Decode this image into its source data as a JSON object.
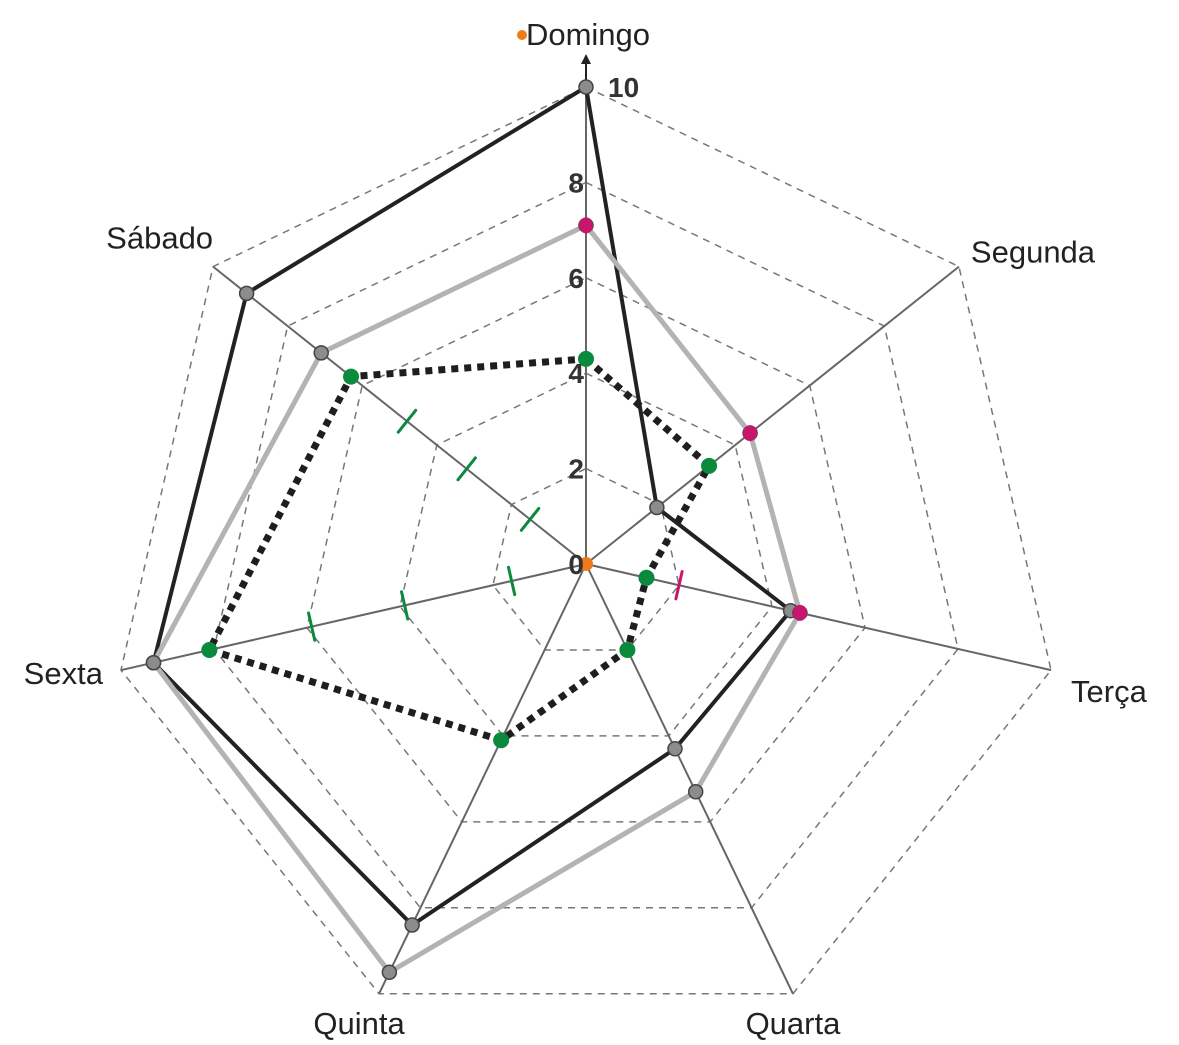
{
  "chart_data": {
    "type": "radar",
    "axes": [
      "Domingo",
      "Segunda",
      "Terça",
      "Quarta",
      "Quinta",
      "Sexta",
      "Sábado"
    ],
    "radial_ticks": [
      "0",
      "2",
      "4",
      "6",
      "8",
      "10"
    ],
    "rmax": 10,
    "grid": "dashed",
    "series": [
      {
        "values": [
          10,
          1.9,
          4.4,
          4.3,
          8.4,
          9.3,
          9.1
        ],
        "color": "#222222",
        "style": "solid-dark"
      },
      {
        "values": [
          7.1,
          4.4,
          4.6,
          5.3,
          9.5,
          9.3,
          7.1
        ],
        "color": "#b3b3b3",
        "style": "solid-light"
      },
      {
        "values": [
          4.3,
          3.3,
          1.3,
          2.0,
          4.1,
          8.1,
          6.3
        ],
        "color": "#1e1e1e",
        "style": "dotted"
      }
    ],
    "annotations": {
      "pink_markers": [
        {
          "axis": "Domingo",
          "value": 7.1
        },
        {
          "axis": "Segunda",
          "value": 4.4
        },
        {
          "axis": "Terça",
          "value": 4.6
        }
      ],
      "green_markers": [
        {
          "axis": "Domingo",
          "value": 4.3
        },
        {
          "axis": "Segunda",
          "value": 3.3
        },
        {
          "axis": "Terça",
          "value": 1.3
        },
        {
          "axis": "Quarta",
          "value": 2.0
        },
        {
          "axis": "Quinta",
          "value": 4.1
        },
        {
          "axis": "Sexta",
          "value": 8.1
        },
        {
          "axis": "Sábado",
          "value": 6.3
        }
      ],
      "orange_marker": {
        "axis": "center",
        "value": 0
      },
      "marker_colors": {
        "pink": "#c8166d",
        "green": "#0a8a3c",
        "orange": "#f07a1a"
      }
    }
  }
}
